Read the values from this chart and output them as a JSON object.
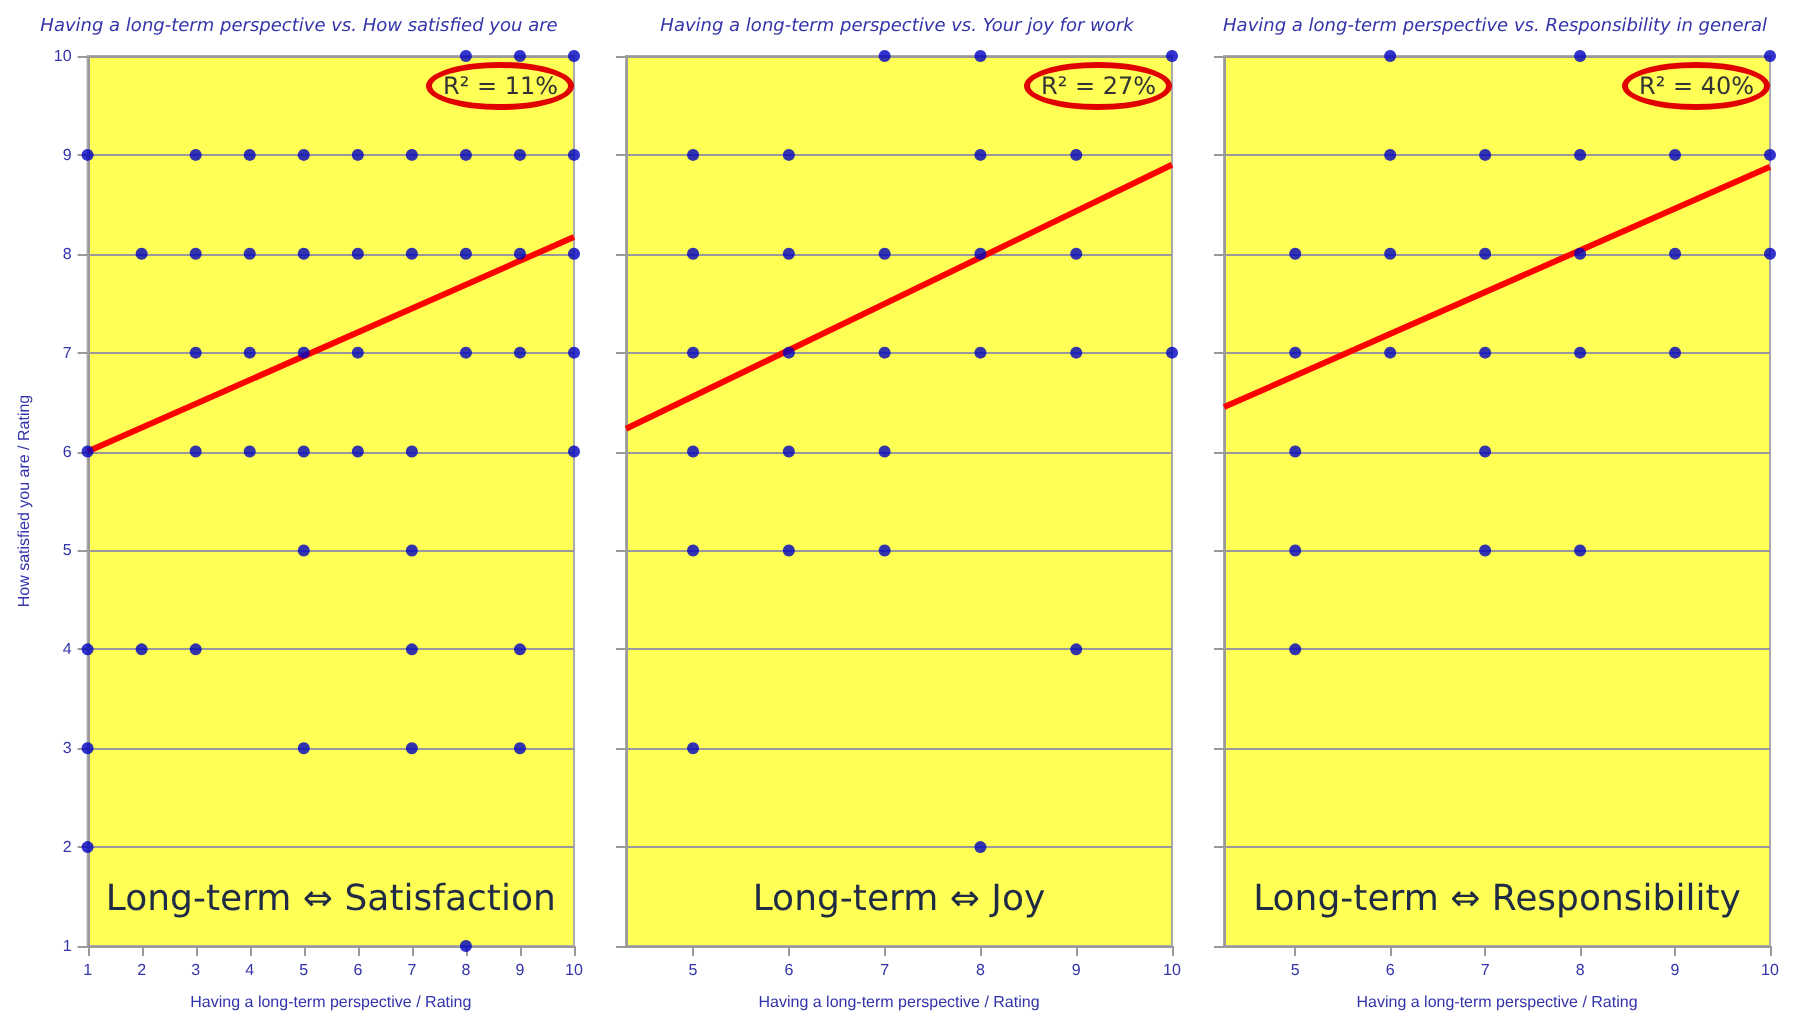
{
  "chart_data": [
    {
      "type": "scatter",
      "title": "Having a long-term perspective vs. How satisfied you are",
      "xlabel": "Having a long-term perspective / Rating",
      "ylabel": "How satisfied you are / Rating",
      "xlim": [
        1,
        10
      ],
      "ylim": [
        1,
        10
      ],
      "xticks": [
        1,
        2,
        3,
        4,
        5,
        6,
        7,
        8,
        9,
        10
      ],
      "yticks": [
        1,
        2,
        3,
        4,
        5,
        6,
        7,
        8,
        9,
        10
      ],
      "grid": "y",
      "annotations": [
        "R² = 11%",
        "Long-term ⇔ Satisfaction"
      ],
      "series": [
        {
          "type": "scatter",
          "marker": "circle",
          "color": "#0000c0",
          "x": [
            8,
            9,
            10,
            1,
            3,
            4,
            5,
            6,
            7,
            8,
            9,
            10,
            2,
            3,
            4,
            5,
            6,
            7,
            8,
            9,
            10,
            3,
            4,
            5,
            6,
            8,
            9,
            10,
            1,
            3,
            4,
            5,
            6,
            7,
            10,
            5,
            7,
            1,
            2,
            3,
            7,
            9,
            1,
            5,
            7,
            9,
            1,
            8
          ],
          "values": [
            10,
            10,
            10,
            9,
            9,
            9,
            9,
            9,
            9,
            9,
            9,
            9,
            8,
            8,
            8,
            8,
            8,
            8,
            8,
            8,
            8,
            7,
            7,
            7,
            7,
            7,
            7,
            7,
            6,
            6,
            6,
            6,
            6,
            6,
            6,
            5,
            5,
            4,
            4,
            4,
            4,
            4,
            3,
            3,
            3,
            3,
            2,
            1
          ]
        },
        {
          "type": "line",
          "marker": "none",
          "color": "#ff0000",
          "x": [
            1,
            10
          ],
          "values": [
            6,
            8.17
          ]
        }
      ]
    },
    {
      "type": "scatter",
      "title": "Having a long-term perspective vs. Your joy for work",
      "xlabel": "Having a long-term perspective / Rating",
      "xlim": [
        4.3,
        10
      ],
      "ylim": [
        1,
        10
      ],
      "xticks": [
        5,
        6,
        7,
        8,
        9,
        10
      ],
      "yticks": [
        {
          "value": 1,
          "label": null
        },
        {
          "value": 2,
          "label": null
        },
        {
          "value": 3,
          "label": null
        },
        {
          "value": 4,
          "label": null
        },
        {
          "value": 5,
          "label": null
        },
        {
          "value": 6,
          "label": null
        },
        {
          "value": 7,
          "label": null
        },
        {
          "value": 8,
          "label": null
        },
        {
          "value": 9,
          "label": null
        },
        {
          "value": 10,
          "label": null
        }
      ],
      "grid": "y",
      "tick_labels": "x",
      "annotations": [
        "R² = 27%",
        "Long-term ⇔ Joy"
      ],
      "series": [
        {
          "type": "scatter",
          "marker": "circle",
          "color": "#0000c0",
          "x": [
            7,
            8,
            10,
            5,
            6,
            8,
            9,
            5,
            6,
            7,
            8,
            9,
            5,
            6,
            7,
            8,
            9,
            10,
            5,
            6,
            7,
            5,
            6,
            7,
            9,
            5,
            8
          ],
          "values": [
            10,
            10,
            10,
            9,
            9,
            9,
            9,
            8,
            8,
            8,
            8,
            8,
            7,
            7,
            7,
            7,
            7,
            7,
            6,
            6,
            6,
            5,
            5,
            5,
            4,
            3,
            2
          ]
        },
        {
          "type": "line",
          "marker": "none",
          "color": "#ff0000",
          "x": [
            4.3,
            10
          ],
          "values": [
            6.23,
            8.9
          ]
        }
      ]
    },
    {
      "type": "scatter",
      "title": "Having a long-term perspective vs. Responsibility in general",
      "xlabel": "Having a long-term perspective / Rating",
      "xlim": [
        4.25,
        10
      ],
      "ylim": [
        1,
        10
      ],
      "xticks": [
        5,
        6,
        7,
        8,
        9,
        10
      ],
      "yticks": [
        {
          "value": 1,
          "label": null
        },
        {
          "value": 2,
          "label": null
        },
        {
          "value": 3,
          "label": null
        },
        {
          "value": 4,
          "label": null
        },
        {
          "value": 5,
          "label": null
        },
        {
          "value": 6,
          "label": null
        },
        {
          "value": 7,
          "label": null
        },
        {
          "value": 8,
          "label": null
        },
        {
          "value": 9,
          "label": null
        },
        {
          "value": 10,
          "label": null
        }
      ],
      "grid": "y",
      "tick_labels": "x",
      "annotations": [
        "R² = 40%",
        "Long-term ⇔ Responsibility"
      ],
      "series": [
        {
          "type": "scatter",
          "marker": "circle",
          "color": "#0000c0",
          "x": [
            6,
            8,
            10,
            6,
            7,
            8,
            9,
            10,
            5,
            6,
            7,
            8,
            9,
            10,
            5,
            6,
            7,
            8,
            9,
            5,
            7,
            5,
            7,
            8,
            5
          ],
          "values": [
            10,
            10,
            10,
            9,
            9,
            9,
            9,
            9,
            8,
            8,
            8,
            8,
            8,
            8,
            7,
            7,
            7,
            7,
            7,
            6,
            6,
            5,
            5,
            5,
            4
          ]
        },
        {
          "type": "line",
          "marker": "none",
          "color": "#ff0000",
          "x": [
            4.25,
            10
          ],
          "values": [
            6.45,
            8.88
          ]
        }
      ]
    }
  ]
}
